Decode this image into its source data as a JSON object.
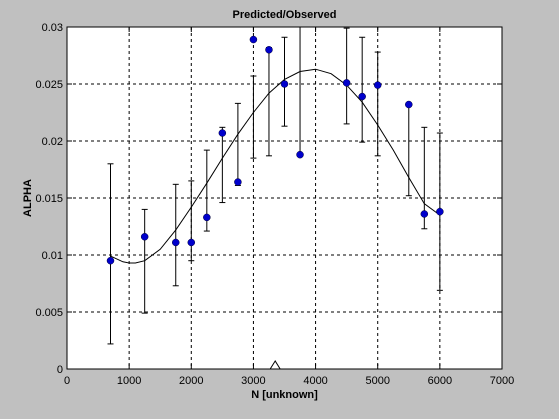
{
  "chart_data": {
    "type": "scatter",
    "title": "Predicted/Observed",
    "xlabel": "N [unknown]",
    "ylabel": "ALPHA",
    "xlim": [
      0,
      7000
    ],
    "ylim": [
      0,
      0.03
    ],
    "grid": true,
    "xticks": [
      "0",
      "1000",
      "2000",
      "3000",
      "4000",
      "5000",
      "6000",
      "7000"
    ],
    "yticks": [
      "0",
      "0.005",
      "0.01",
      "0.015",
      "0.02",
      "0.025",
      "0.03"
    ],
    "observed": [
      {
        "x": 700,
        "y": 0.0095,
        "low": 0.0022,
        "high": 0.018
      },
      {
        "x": 1250,
        "y": 0.0116,
        "low": 0.0049,
        "high": 0.014
      },
      {
        "x": 1750,
        "y": 0.0111,
        "low": 0.0073,
        "high": 0.0162
      },
      {
        "x": 2000,
        "y": 0.0111,
        "low": 0.0095,
        "high": 0.0165
      },
      {
        "x": 2250,
        "y": 0.0133,
        "low": 0.0121,
        "high": 0.0192
      },
      {
        "x": 2500,
        "y": 0.0207,
        "low": 0.0146,
        "high": 0.0212
      },
      {
        "x": 2750,
        "y": 0.0164,
        "low": 0.0161,
        "high": 0.0233
      },
      {
        "x": 3000,
        "y": 0.0289,
        "low": 0.0185,
        "high": 0.0257
      },
      {
        "x": 3250,
        "y": 0.028,
        "low": 0.0187,
        "high": 0.0282
      },
      {
        "x": 3500,
        "y": 0.025,
        "low": 0.0213,
        "high": 0.0291
      },
      {
        "x": 3750,
        "y": 0.0188,
        "low": 0.0188,
        "high": 0.03
      },
      {
        "x": 4500,
        "y": 0.0251,
        "low": 0.0215,
        "high": 0.0299
      },
      {
        "x": 4750,
        "y": 0.0239,
        "low": 0.0199,
        "high": 0.0291
      },
      {
        "x": 5000,
        "y": 0.0249,
        "low": 0.0187,
        "high": 0.0278
      },
      {
        "x": 5500,
        "y": 0.0232,
        "low": 0.0152,
        "high": 0.0232
      },
      {
        "x": 5750,
        "y": 0.0136,
        "low": 0.0123,
        "high": 0.0212
      },
      {
        "x": 6000,
        "y": 0.0138,
        "low": 0.0069,
        "high": 0.0207
      }
    ],
    "predicted_curve": {
      "x": [
        700,
        900,
        1000,
        1100,
        1250,
        1500,
        1750,
        2000,
        2250,
        2500,
        2750,
        3000,
        3250,
        3500,
        3750,
        4000,
        4250,
        4500,
        4750,
        5000,
        5250,
        5500,
        5750,
        6000
      ],
      "y": [
        0.0099,
        0.0094,
        0.0093,
        0.0093,
        0.0095,
        0.0105,
        0.0122,
        0.0142,
        0.0163,
        0.0185,
        0.0206,
        0.0225,
        0.0242,
        0.0254,
        0.0261,
        0.0263,
        0.0259,
        0.0249,
        0.0234,
        0.0214,
        0.0192,
        0.0168,
        0.0145,
        0.0135
      ]
    },
    "marker": {
      "x": 3350,
      "y": 0,
      "shape": "triangle"
    },
    "colors": {
      "points": "#0000cc",
      "line": "#000000",
      "grid": "#000000",
      "background": "#c0c0c0",
      "plot_area": "#ffffff"
    }
  }
}
